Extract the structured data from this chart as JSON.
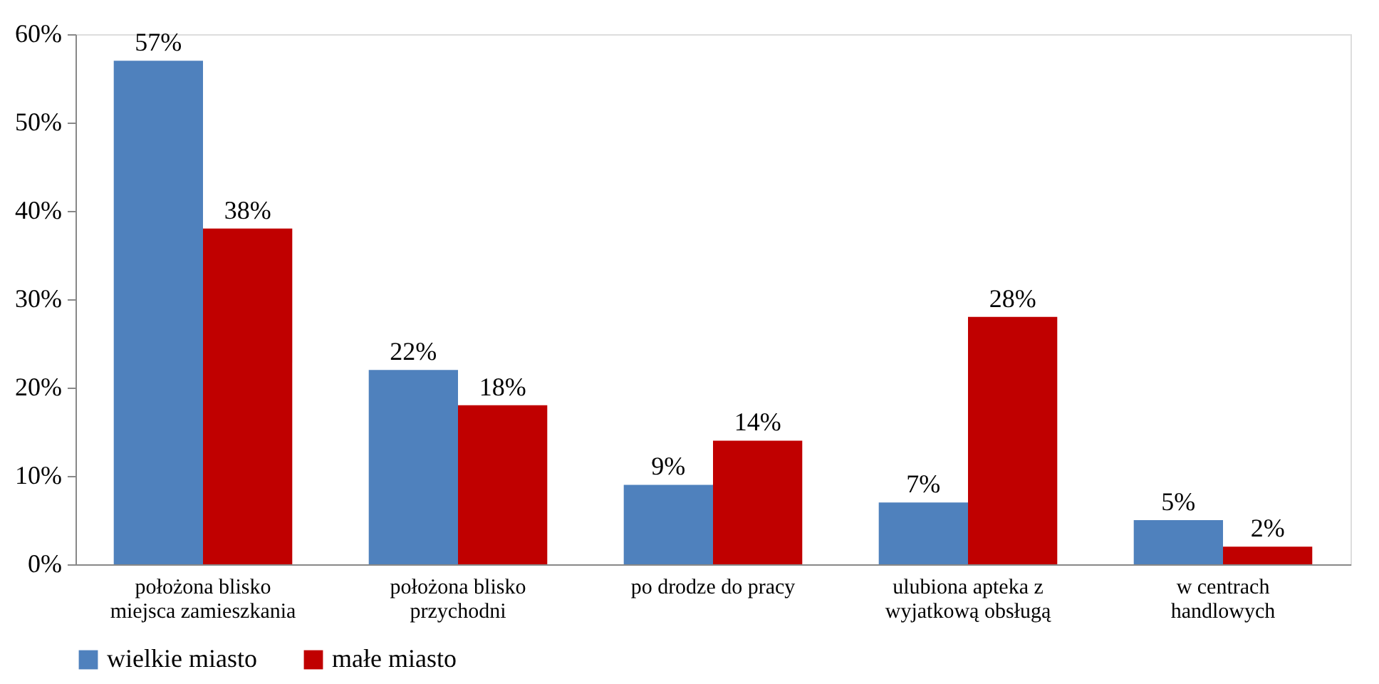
{
  "chart_data": {
    "type": "bar",
    "categories": [
      "położona blisko\nmiejsca zamieszkania",
      "położona blisko\nprzychodni",
      "po drodze do pracy",
      "ulubiona apteka z\nwyjatkową obsługą",
      "w centrach\nhandlowych"
    ],
    "series": [
      {
        "name": "wielkie miasto",
        "color": "#4f81bd",
        "values": [
          57,
          22,
          9,
          7,
          5
        ],
        "value_labels": [
          "57%",
          "22%",
          "9%",
          "7%",
          "5%"
        ]
      },
      {
        "name": "małe miasto",
        "color": "#c00000",
        "values": [
          38,
          18,
          14,
          28,
          2
        ],
        "value_labels": [
          "38%",
          "18%",
          "14%",
          "28%",
          "2%"
        ]
      }
    ],
    "ylim": [
      0,
      60
    ],
    "yticks": [
      {
        "value": 0,
        "label": "0%"
      },
      {
        "value": 10,
        "label": "10%"
      },
      {
        "value": 20,
        "label": "20%"
      },
      {
        "value": 30,
        "label": "30%"
      },
      {
        "value": 40,
        "label": "40%"
      },
      {
        "value": 50,
        "label": "50%"
      },
      {
        "value": 60,
        "label": "60%"
      }
    ],
    "grid": false,
    "legend": "bottom"
  }
}
